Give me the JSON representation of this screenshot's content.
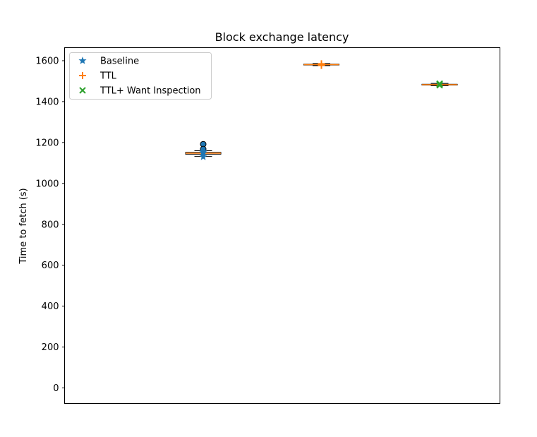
{
  "chart_data": {
    "type": "box",
    "title": "Block exchange latency",
    "xlabel": "",
    "ylabel": "Time to fetch (s)",
    "ylim": [
      -75,
      1660
    ],
    "yticks": [
      0,
      200,
      400,
      600,
      800,
      1000,
      1200,
      1400,
      1600
    ],
    "xticks_visible": false,
    "grid": false,
    "legend_position": "top-left",
    "series": [
      {
        "name": "Baseline",
        "color": "#1f77b4",
        "marker": "star",
        "box": {
          "whislo": 1132,
          "q1": 1143,
          "median": 1148,
          "q3": 1152,
          "whishi": 1160
        },
        "fliers": [
          1192,
          1168
        ],
        "points": [
          1130,
          1148,
          1150,
          1156
        ]
      },
      {
        "name": "TTL",
        "color": "#ff7f0e",
        "marker": "plus",
        "box": {
          "whislo": 1576,
          "q1": 1579,
          "median": 1581,
          "q3": 1583,
          "whishi": 1586
        },
        "fliers": [],
        "points": [
          1577,
          1582,
          1585
        ]
      },
      {
        "name": "TTL+ Want Inspection",
        "color": "#2ca02c",
        "marker": "x",
        "box": {
          "whislo": 1478,
          "q1": 1481,
          "median": 1483,
          "q3": 1485,
          "whishi": 1489
        },
        "fliers": [],
        "points": [
          1480,
          1485,
          1488
        ]
      }
    ]
  }
}
